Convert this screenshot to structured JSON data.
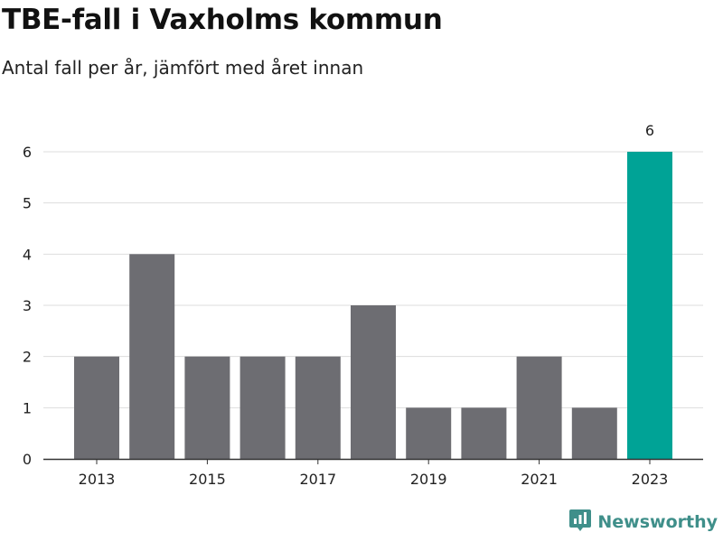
{
  "title": "TBE-fall i Vaxholms kommun",
  "subtitle": "Antal fall per år, jämfört med året innan",
  "brand": {
    "name": "Newsworthy",
    "icon": "bar-chart-pin-icon",
    "color": "#3f8f8a"
  },
  "colors": {
    "bar": "#6d6d72",
    "highlight": "#00a396",
    "grid": "#dddddd",
    "axis": "#333333"
  },
  "chart_data": {
    "type": "bar",
    "categories": [
      "2013",
      "2014",
      "2015",
      "2016",
      "2017",
      "2018",
      "2019",
      "2020",
      "2021",
      "2022",
      "2023"
    ],
    "values": [
      2,
      4,
      2,
      2,
      2,
      3,
      1,
      1,
      2,
      1,
      6
    ],
    "x_tick_labels": [
      "2013",
      "2015",
      "2017",
      "2019",
      "2021",
      "2023"
    ],
    "highlight_index": 10,
    "data_labels": [
      {
        "index": 10,
        "text": "6"
      }
    ],
    "ylim": [
      0,
      6
    ],
    "yticks": [
      0,
      1,
      2,
      3,
      4,
      5,
      6
    ],
    "xlabel": "",
    "ylabel": "",
    "grid": true,
    "legend": "none"
  }
}
